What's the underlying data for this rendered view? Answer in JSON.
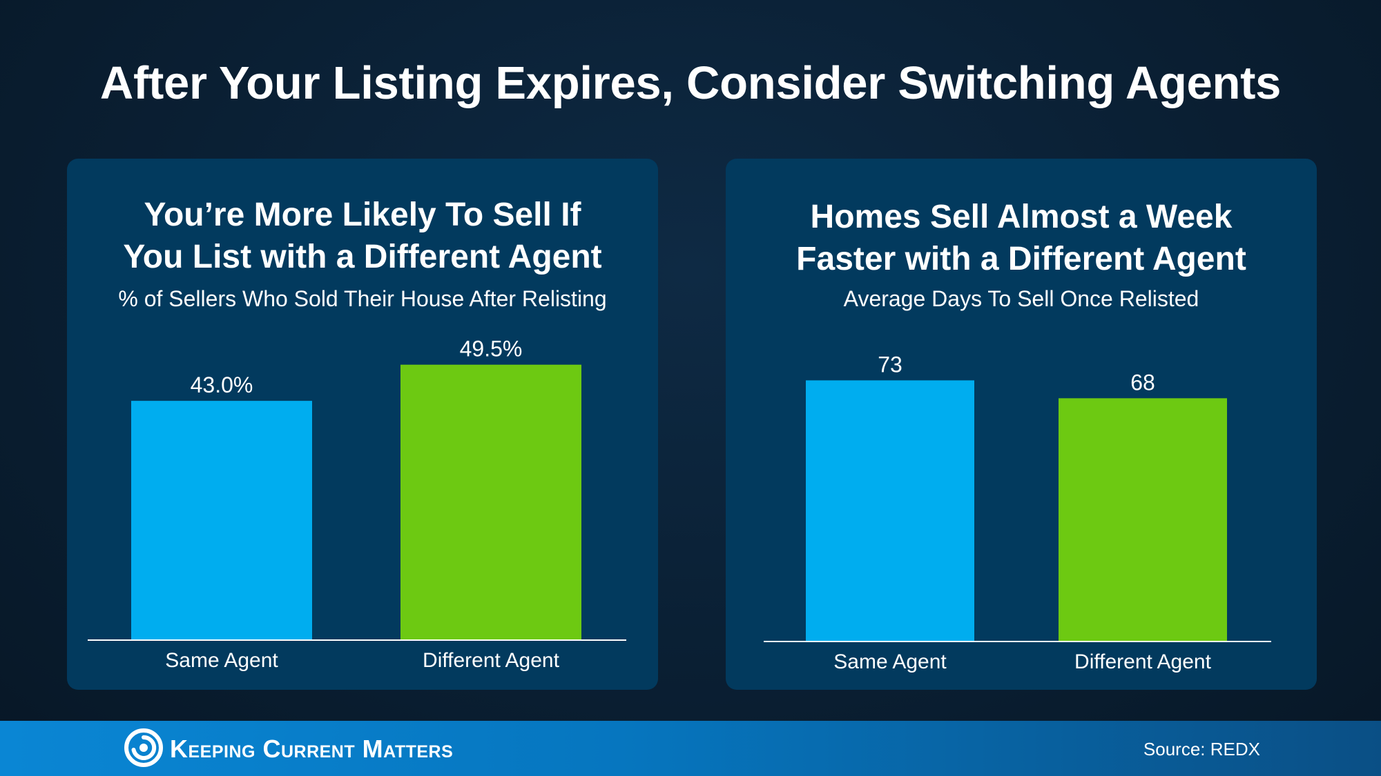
{
  "title": "After Your Listing Expires, Consider Switching Agents",
  "chart_data": [
    {
      "type": "bar",
      "title": [
        "You’re More Likely To Sell If",
        "You List with a Different Agent"
      ],
      "subtitle": "% of Sellers Who Sold Their House After Relisting",
      "categories": [
        "Same Agent",
        "Different Agent"
      ],
      "values": [
        43.0,
        49.5
      ],
      "value_labels": [
        "43.0%",
        "49.5%"
      ],
      "colors": [
        "#00adef",
        "#6dc912"
      ],
      "ylim": [
        0,
        60
      ],
      "grid": false
    },
    {
      "type": "bar",
      "title": [
        "Homes Sell Almost a Week",
        "Faster with a Different Agent"
      ],
      "subtitle": "Average Days To Sell Once Relisted",
      "categories": [
        "Same Agent",
        "Different Agent"
      ],
      "values": [
        73,
        68
      ],
      "value_labels": [
        "73",
        "68"
      ],
      "colors": [
        "#00adef",
        "#6dc912"
      ],
      "ylim": [
        0,
        86
      ],
      "grid": false
    }
  ],
  "footer": {
    "brand": "Keeping Current Matters",
    "source": "Source: REDX"
  }
}
